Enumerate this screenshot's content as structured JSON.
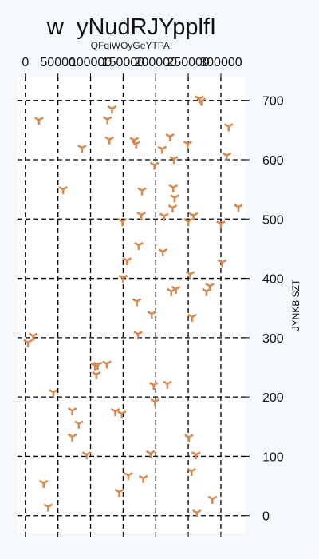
{
  "chart_data": {
    "type": "scatter",
    "title": "w  yNudRJYpplfI",
    "subtitle": "QFqiWOyGeYTPAI",
    "xlabel": "",
    "ylabel": "JYNKB SZT",
    "x_ticks": [
      0,
      50000,
      100000,
      150000,
      200000,
      250000,
      300000
    ],
    "x_tick_labels": [
      "0",
      "50000",
      "100000",
      "150000",
      "200000",
      "250000",
      "300000"
    ],
    "y_ticks": [
      0,
      100,
      200,
      300,
      400,
      500,
      600,
      700
    ],
    "y_tick_labels": [
      "0",
      "100",
      "200",
      "300",
      "400",
      "500",
      "600",
      "700"
    ],
    "xlim": [
      -12000,
      338000
    ],
    "ylim": [
      -30,
      740
    ],
    "x_axis_position": "top",
    "y_axis_position": "right",
    "grid": true,
    "marker": "tri-down",
    "colors": {
      "background": "#f5f9fc",
      "plot_background": "#ffffff",
      "marker": "#d9884e",
      "grid": "#000000"
    },
    "series": [
      {
        "points": [
          [
            21000,
            667
          ],
          [
            4000,
            292
          ],
          [
            12000,
            303
          ],
          [
            28000,
            55
          ],
          [
            35000,
            15
          ],
          [
            43000,
            208
          ],
          [
            58000,
            550
          ],
          [
            72000,
            177
          ],
          [
            72000,
            133
          ],
          [
            82000,
            155
          ],
          [
            87000,
            620
          ],
          [
            94000,
            103
          ],
          [
            107000,
            253
          ],
          [
            109000,
            238
          ],
          [
            111000,
            254
          ],
          [
            125000,
            256
          ],
          [
            126000,
            668
          ],
          [
            129000,
            634
          ],
          [
            133000,
            686
          ],
          [
            138000,
            176
          ],
          [
            144000,
            40
          ],
          [
            148000,
            172
          ],
          [
            149000,
            496
          ],
          [
            150000,
            401
          ],
          [
            156000,
            430
          ],
          [
            158000,
            68
          ],
          [
            167000,
            633
          ],
          [
            170000,
            627
          ],
          [
            171000,
            361
          ],
          [
            173000,
            306
          ],
          [
            174000,
            456
          ],
          [
            178000,
            507
          ],
          [
            179000,
            548
          ],
          [
            181000,
            63
          ],
          [
            192000,
            105
          ],
          [
            194000,
            340
          ],
          [
            197000,
            220
          ],
          [
            198000,
            591
          ],
          [
            199000,
            192
          ],
          [
            210000,
            618
          ],
          [
            211000,
            445
          ],
          [
            213000,
            505
          ],
          [
            218000,
            222
          ],
          [
            222000,
            639
          ],
          [
            224000,
            378
          ],
          [
            226000,
            519
          ],
          [
            227000,
            553
          ],
          [
            228000,
            601
          ],
          [
            229000,
            536
          ],
          [
            231000,
            382
          ],
          [
            249000,
            627
          ],
          [
            250000,
            496
          ],
          [
            251000,
            132
          ],
          [
            253000,
            407
          ],
          [
            255000,
            75
          ],
          [
            256000,
            335
          ],
          [
            258000,
            506
          ],
          [
            262000,
            103
          ],
          [
            263000,
            5
          ],
          [
            267000,
            703
          ],
          [
            270000,
            699
          ],
          [
            278000,
            378
          ],
          [
            283000,
            387
          ],
          [
            287000,
            28
          ],
          [
            300000,
            492
          ],
          [
            302000,
            427
          ],
          [
            309000,
            607
          ],
          [
            312000,
            656
          ],
          [
            327000,
            520
          ]
        ]
      }
    ]
  }
}
